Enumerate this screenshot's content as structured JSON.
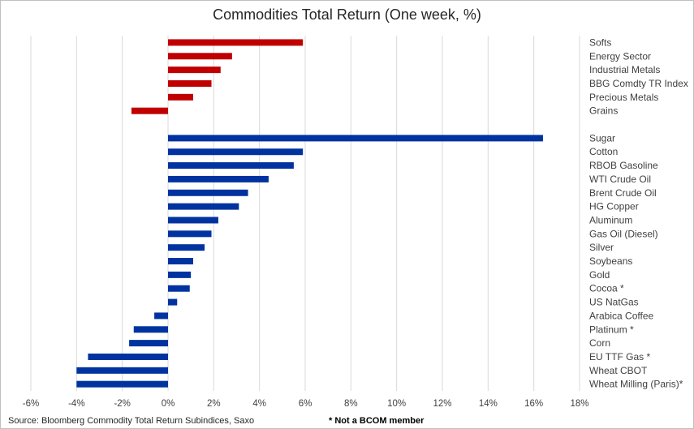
{
  "chart_data": {
    "type": "bar",
    "orientation": "horizontal",
    "title": "Commodities Total Return (One week, %)",
    "xlim": [
      -6,
      18
    ],
    "x_ticks": [
      "-6%",
      "-4%",
      "-2%",
      "0%",
      "2%",
      "4%",
      "6%",
      "8%",
      "10%",
      "12%",
      "14%",
      "16%",
      "18%"
    ],
    "grid": true,
    "series": [
      {
        "color": "#c00000",
        "categories": [
          "Softs",
          "Energy Sector",
          "Industrial Metals",
          "BBG Comdty TR Index",
          "Precious Metals",
          "Grains"
        ],
        "values": [
          5.9,
          2.8,
          2.3,
          1.9,
          1.1,
          -1.6
        ]
      },
      {
        "color": "#0033a0",
        "categories": [
          "Sugar",
          "Cotton",
          "RBOB Gasoline",
          "WTI Crude Oil",
          "Brent Crude Oil",
          "HG Copper",
          "Aluminum",
          "Gas Oil (Diesel)",
          "Silver",
          "Soybeans",
          "Gold",
          "Cocoa *",
          "US NatGas",
          "Arabica Coffee",
          "Platinum *",
          "Corn",
          "EU TTF Gas *",
          "Wheat CBOT",
          "Wheat Milling (Paris)*"
        ],
        "values": [
          16.4,
          5.9,
          5.5,
          4.4,
          3.5,
          3.1,
          2.2,
          1.9,
          1.6,
          1.1,
          1.0,
          0.95,
          0.4,
          -0.6,
          -1.5,
          -1.7,
          -3.5,
          -4.0,
          -4.0
        ]
      }
    ]
  },
  "footer": {
    "source": "Source: Bloomberg Commodity Total Return Subindices, Saxo",
    "note": "* Not a BCOM member"
  }
}
